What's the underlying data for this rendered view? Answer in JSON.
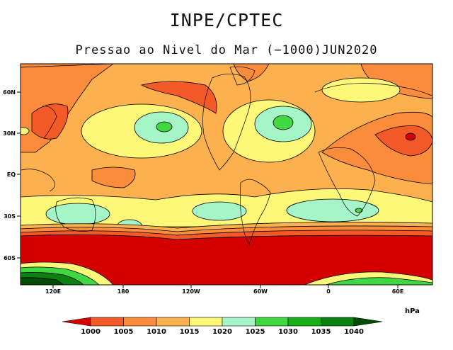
{
  "header": {
    "institution": "INPE/CPTEC",
    "subtitle": "Pressao ao Nivel do Mar (−1000)JUN2020"
  },
  "map": {
    "lat_labels": [
      "60N",
      "30N",
      "EQ",
      "30S",
      "60S"
    ],
    "lon_labels": [
      "120E",
      "180",
      "120W",
      "60W",
      "0",
      "60E"
    ]
  },
  "legend": {
    "unit": "hPa",
    "labels": [
      "1000",
      "1005",
      "1010",
      "1015",
      "1020",
      "1025",
      "1030",
      "1035",
      "1040"
    ],
    "colors": [
      "#d40000",
      "#f45a28",
      "#fb8c3c",
      "#fcb04e",
      "#fdf878",
      "#a6f5c8",
      "#40d840",
      "#16b016",
      "#0a8010",
      "#004c00"
    ]
  },
  "colors": {
    "background": "#ffffff",
    "frame": "#000000"
  }
}
